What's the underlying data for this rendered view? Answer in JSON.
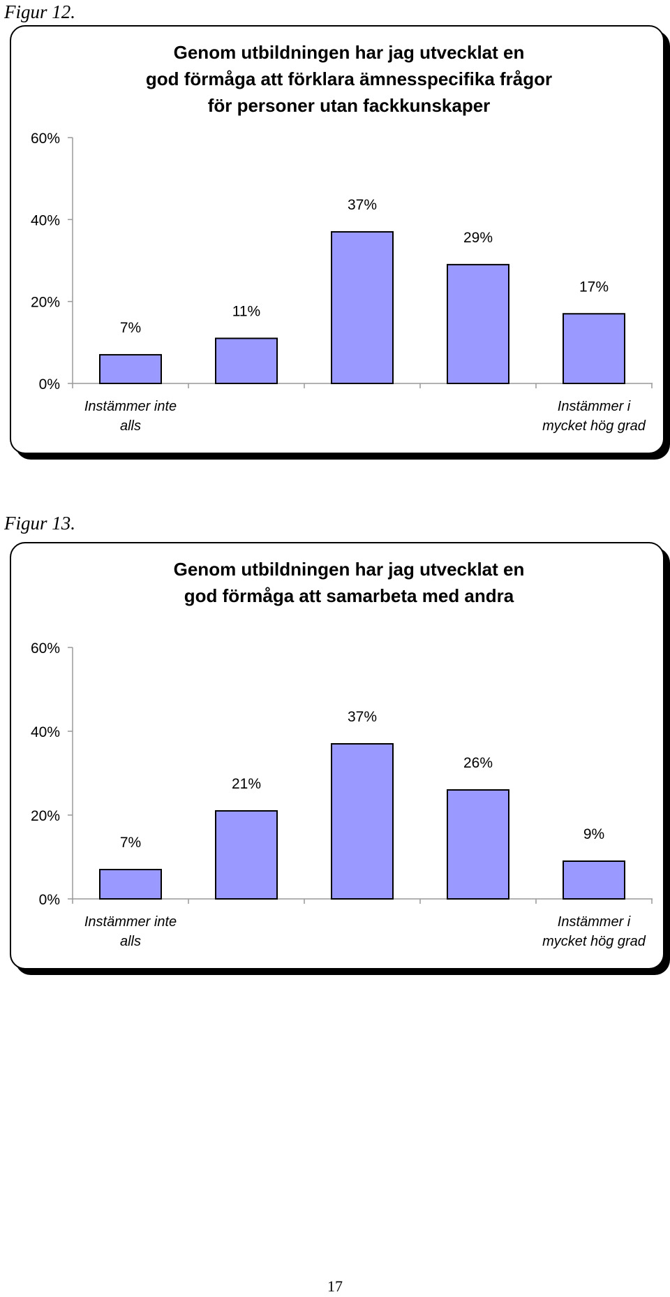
{
  "page": {
    "number": "17"
  },
  "figures": [
    {
      "caption": "Figur 12.",
      "title": "Genom utbildningen har jag utvecklat en\ngod förmåga att förklara ämnesspecifika frågor\nför personer utan fackkunskaper"
    },
    {
      "caption": "Figur 13.",
      "title": "Genom utbildningen har jag utvecklat en\ngod förmåga att samarbeta med andra"
    }
  ],
  "chart_data": [
    {
      "type": "bar",
      "title": "Genom utbildningen har jag utvecklat en god förmåga att förklara ämnesspecifika frågor för personer utan fackkunskaper",
      "categories": [
        "1",
        "2",
        "3",
        "4",
        "5"
      ],
      "category_labels": [
        "Instämmer inte\nalls",
        "",
        "",
        "",
        "Instämmer i\nmycket hög grad"
      ],
      "values": [
        7,
        11,
        37,
        29,
        17
      ],
      "value_labels": [
        "7%",
        "11%",
        "37%",
        "29%",
        "17%"
      ],
      "yticks": [
        0,
        20,
        40,
        60
      ],
      "ytick_labels": [
        "0%",
        "20%",
        "40%",
        "60%"
      ],
      "ylim": [
        0,
        60
      ],
      "grid": false,
      "bar_color": "#9999ff"
    },
    {
      "type": "bar",
      "title": "Genom utbildningen har jag utvecklat en god förmåga att samarbeta med andra",
      "categories": [
        "1",
        "2",
        "3",
        "4",
        "5"
      ],
      "category_labels": [
        "Instämmer inte\nalls",
        "",
        "",
        "",
        "Instämmer i\nmycket hög grad"
      ],
      "values": [
        7,
        21,
        37,
        26,
        9
      ],
      "value_labels": [
        "7%",
        "21%",
        "37%",
        "26%",
        "9%"
      ],
      "yticks": [
        0,
        20,
        40,
        60
      ],
      "ytick_labels": [
        "0%",
        "20%",
        "40%",
        "60%"
      ],
      "ylim": [
        0,
        60
      ],
      "grid": false,
      "bar_color": "#9999ff"
    }
  ]
}
